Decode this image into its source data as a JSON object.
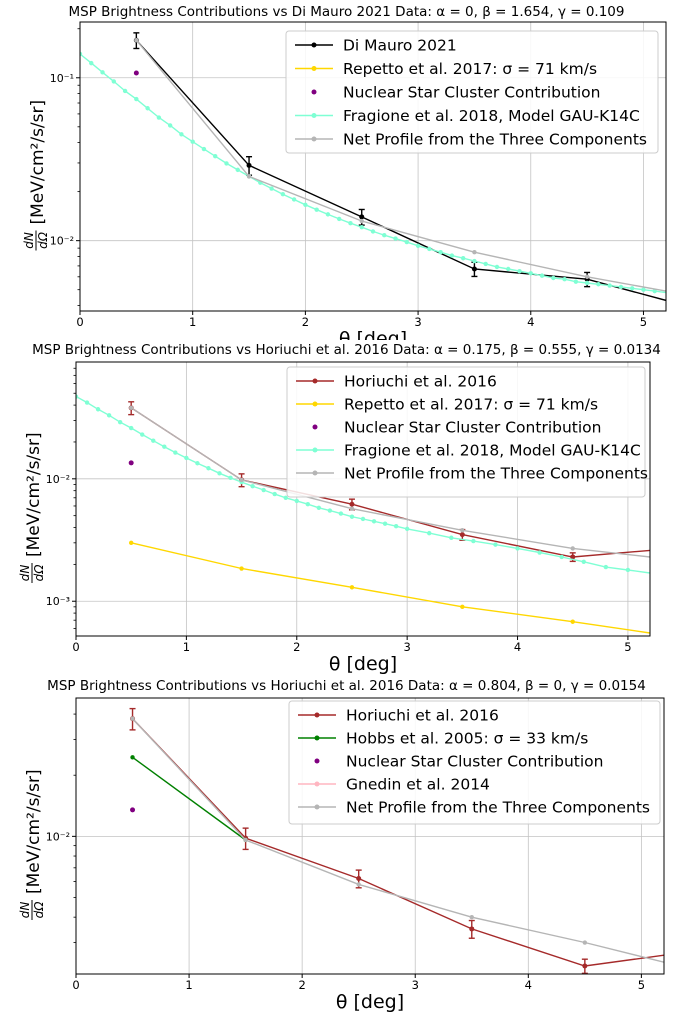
{
  "chart_data": [
    {
      "type": "line",
      "title": "MSP Brightness Contributions vs Di Mauro 2021 Data: α = 0, β = 1.654, γ = 0.109",
      "xlabel": "θ [deg]",
      "ylabel_num": "dN",
      "ylabel_den": "dΩ",
      "ylabel_unit": "[MeV/cm²/s/sr]",
      "yscale": "log",
      "xlim": [
        0,
        5.2
      ],
      "ylim": [
        0.0037,
        0.22
      ],
      "xticks": [
        0,
        1,
        2,
        3,
        4,
        5
      ],
      "xtick_labels": [
        "0",
        "1",
        "2",
        "3",
        "4",
        "5"
      ],
      "yticks": [
        0.01,
        0.1
      ],
      "ytick_labels": [
        "10⁻²",
        "10⁻¹"
      ],
      "grid": true,
      "legend_position": "top-right",
      "series": [
        {
          "name": "Di Mauro 2021",
          "color": "#000000",
          "style": "line-errorbar",
          "x": [
            0.5,
            1.5,
            2.5,
            3.5,
            4.5,
            5.2
          ],
          "y": [
            0.17,
            0.029,
            0.014,
            0.0067,
            0.0058,
            0.0043
          ],
          "err_frac": [
            0.11,
            0.13,
            0.11,
            0.1,
            0.1,
            0
          ]
        },
        {
          "name": "Repetto et al. 2017: σ = 71 km/s",
          "color": "#ffd700",
          "style": "line",
          "x": [],
          "y": []
        },
        {
          "name": "Nuclear Star Cluster Contribution",
          "color": "#800080",
          "style": "point",
          "x": [
            0.5
          ],
          "y": [
            0.107
          ]
        },
        {
          "name": "Fragione et al. 2018, Model GAU-K14C",
          "color": "#7fffd4",
          "style": "line-marker",
          "x": [
            0,
            0.1,
            0.2,
            0.3,
            0.4,
            0.5,
            0.6,
            0.7,
            0.8,
            0.9,
            1.0,
            1.1,
            1.2,
            1.3,
            1.4,
            1.5,
            1.6,
            1.7,
            1.8,
            1.9,
            2.0,
            2.1,
            2.2,
            2.3,
            2.4,
            2.5,
            2.6,
            2.7,
            2.8,
            2.9,
            3.0,
            3.1,
            3.2,
            3.3,
            3.4,
            3.5,
            3.6,
            3.7,
            3.8,
            3.9,
            4.0,
            4.1,
            4.2,
            4.3,
            4.4,
            4.5,
            4.6,
            4.7,
            4.8,
            4.9,
            5.0,
            5.1,
            5.2
          ],
          "y": [
            0.14,
            0.123,
            0.108,
            0.095,
            0.083,
            0.074,
            0.065,
            0.057,
            0.051,
            0.045,
            0.0405,
            0.0365,
            0.033,
            0.0298,
            0.0272,
            0.0248,
            0.0227,
            0.0209,
            0.0193,
            0.0179,
            0.0166,
            0.0155,
            0.0145,
            0.0136,
            0.0128,
            0.0121,
            0.0114,
            0.0108,
            0.0103,
            0.0098,
            0.0093,
            0.0089,
            0.0085,
            0.0081,
            0.0078,
            0.0075,
            0.0072,
            0.0069,
            0.0067,
            0.0065,
            0.0063,
            0.0061,
            0.0059,
            0.0058,
            0.0056,
            0.0055,
            0.0054,
            0.0053,
            0.0052,
            0.0051,
            0.005,
            0.0049,
            0.0048
          ]
        },
        {
          "name": "Net Profile from the Three Components",
          "color": "#b5b5b5",
          "style": "line-marker",
          "x": [
            0.5,
            1.5,
            2.5,
            3.5,
            4.5,
            5.2
          ],
          "y": [
            0.17,
            0.0248,
            0.0132,
            0.0085,
            0.006,
            0.0049
          ]
        }
      ]
    },
    {
      "type": "line",
      "title": "MSP Brightness Contributions vs Horiuchi et al. 2016 Data: α = 0.175, β = 0.555, γ = 0.0134",
      "xlabel": "θ [deg]",
      "ylabel_num": "dN",
      "ylabel_den": "dΩ",
      "ylabel_unit": "[MeV/cm²/s/sr]",
      "yscale": "log",
      "xlim": [
        0,
        5.2
      ],
      "ylim": [
        0.00052,
        0.09
      ],
      "xticks": [
        0,
        1,
        2,
        3,
        4,
        5
      ],
      "xtick_labels": [
        "0",
        "1",
        "2",
        "3",
        "4",
        "5"
      ],
      "yticks": [
        0.001,
        0.01
      ],
      "ytick_labels": [
        "10⁻³",
        "10⁻²"
      ],
      "grid": true,
      "legend_position": "top-right",
      "series": [
        {
          "name": "Horiuchi et al. 2016",
          "color": "#a52a2a",
          "style": "line-errorbar",
          "x": [
            0.5,
            1.5,
            2.5,
            3.5,
            4.5,
            5.2
          ],
          "y": [
            0.038,
            0.0098,
            0.0062,
            0.0035,
            0.0023,
            0.0026
          ],
          "err_frac": [
            0.12,
            0.12,
            0.1,
            0.1,
            0.08,
            0
          ]
        },
        {
          "name": "Repetto et al. 2017: σ = 71 km/s",
          "color": "#ffd700",
          "style": "line-marker",
          "x": [
            0.5,
            1.5,
            2.5,
            3.5,
            4.5,
            5.2
          ],
          "y": [
            0.003,
            0.00185,
            0.0013,
            0.0009,
            0.00068,
            0.00055
          ]
        },
        {
          "name": "Nuclear Star Cluster Contribution",
          "color": "#800080",
          "style": "point",
          "x": [
            0.5
          ],
          "y": [
            0.0135
          ]
        },
        {
          "name": "Fragione et al. 2018, Model GAU-K14C",
          "color": "#7fffd4",
          "style": "line-marker",
          "x": [
            0,
            0.1,
            0.2,
            0.3,
            0.4,
            0.5,
            0.6,
            0.7,
            0.8,
            0.9,
            1.0,
            1.1,
            1.2,
            1.3,
            1.4,
            1.5,
            1.6,
            1.7,
            1.8,
            1.9,
            2.0,
            2.1,
            2.2,
            2.3,
            2.4,
            2.5,
            2.6,
            2.7,
            2.8,
            2.9,
            3.0,
            3.2,
            3.4,
            3.6,
            3.8,
            4.0,
            4.2,
            4.4,
            4.6,
            4.8,
            5.0,
            5.2
          ],
          "y": [
            0.047,
            0.042,
            0.037,
            0.033,
            0.029,
            0.026,
            0.023,
            0.0205,
            0.0183,
            0.0164,
            0.0148,
            0.0134,
            0.0122,
            0.0111,
            0.0102,
            0.0094,
            0.0087,
            0.0081,
            0.0075,
            0.007,
            0.0066,
            0.0062,
            0.0058,
            0.0055,
            0.0052,
            0.0049,
            0.0047,
            0.0045,
            0.0043,
            0.0041,
            0.0039,
            0.0036,
            0.0033,
            0.0031,
            0.0029,
            0.0027,
            0.0025,
            0.0023,
            0.0021,
            0.0019,
            0.0018,
            0.0017
          ]
        },
        {
          "name": "Net Profile from the Three Components",
          "color": "#b5b5b5",
          "style": "line-marker",
          "x": [
            0.5,
            1.5,
            2.5,
            3.5,
            4.5,
            5.2
          ],
          "y": [
            0.038,
            0.0098,
            0.0057,
            0.0038,
            0.0027,
            0.0023
          ]
        }
      ]
    },
    {
      "type": "line",
      "title": "MSP Brightness Contributions vs Horiuchi et al. 2016 Data: α = 0.804, β = 0, γ = 0.0154",
      "xlabel": "θ [deg]",
      "ylabel_num": "dN",
      "ylabel_den": "dΩ",
      "ylabel_unit": "[MeV/cm²/s/sr]",
      "yscale": "log",
      "xlim": [
        0,
        5.2
      ],
      "ylim": [
        0.0021,
        0.048
      ],
      "xticks": [
        0,
        1,
        2,
        3,
        4,
        5
      ],
      "xtick_labels": [
        "0",
        "1",
        "2",
        "3",
        "4",
        "5"
      ],
      "yticks": [
        0.01
      ],
      "ytick_labels": [
        "10⁻²"
      ],
      "grid": true,
      "legend_position": "top-right",
      "series": [
        {
          "name": "Horiuchi et al. 2016",
          "color": "#a52a2a",
          "style": "line-errorbar",
          "x": [
            0.5,
            1.5,
            2.5,
            3.5,
            4.5,
            5.2
          ],
          "y": [
            0.038,
            0.0098,
            0.0062,
            0.0035,
            0.0023,
            0.0026
          ],
          "err_frac": [
            0.12,
            0.12,
            0.1,
            0.1,
            0.08,
            0
          ]
        },
        {
          "name": "Hobbs et al. 2005: σ = 33 km/s",
          "color": "#008000",
          "style": "line-marker",
          "x": [
            0.5,
            1.5
          ],
          "y": [
            0.0245,
            0.0096
          ]
        },
        {
          "name": "Nuclear Star Cluster Contribution",
          "color": "#800080",
          "style": "point",
          "x": [
            0.5
          ],
          "y": [
            0.0135
          ]
        },
        {
          "name": "Gnedin et al. 2014",
          "color": "#ffb6c1",
          "style": "line-marker",
          "x": [],
          "y": []
        },
        {
          "name": "Net Profile from the Three Components",
          "color": "#b5b5b5",
          "style": "line-marker",
          "x": [
            0.5,
            1.5,
            2.5,
            3.5,
            4.5,
            5.2
          ],
          "y": [
            0.038,
            0.0096,
            0.0058,
            0.004,
            0.003,
            0.0024
          ]
        }
      ]
    }
  ]
}
